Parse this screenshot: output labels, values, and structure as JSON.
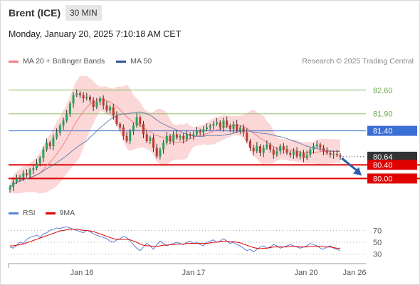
{
  "header": {
    "title": "Brent (ICE)",
    "timeframe": "30 MIN",
    "datetime": "Monday, January 20, 2025 7:10:18 AM CET"
  },
  "legend": {
    "ma20_label": "MA 20 + Bollinger Bands",
    "ma50_label": "MA 50",
    "credit": "Research © 2025 Trading Central"
  },
  "rsi_legend": {
    "rsi_label": "RSI",
    "ma_label": "9MA"
  },
  "colors": {
    "up": "#27a35a",
    "down": "#c0392b",
    "ma20": "#f08080",
    "ma50": "#4a6fa5",
    "band": "#fbd0d0",
    "green_level": "#8fbf6a",
    "blue_level": "#3b6fd4",
    "red_level": "#e00000",
    "current": "#333333",
    "arrow": "#2a5ea8",
    "rsi": "#5b7fd6",
    "rsi_ma": "#e00000"
  },
  "chart_data": [
    {
      "type": "candlestick",
      "instrument": "Brent (ICE)",
      "timeframe": "30 MIN",
      "x_ticks": [
        "Jan 16",
        "Jan 17",
        "Jan 20",
        "Jan 26"
      ],
      "ylim": [
        79.55,
        83.15
      ],
      "levels": [
        {
          "value": "82.60",
          "style": "green"
        },
        {
          "value": "81.90",
          "style": "green"
        },
        {
          "value": "81.40",
          "style": "blue"
        },
        {
          "value": "80.64",
          "style": "current"
        },
        {
          "value": "80.40",
          "style": "red"
        },
        {
          "value": "80.00",
          "style": "red"
        }
      ],
      "closes": [
        79.75,
        79.9,
        80.0,
        80.05,
        80.15,
        80.1,
        80.25,
        80.3,
        80.45,
        80.6,
        80.85,
        81.05,
        80.95,
        81.2,
        81.35,
        81.55,
        81.7,
        81.9,
        82.2,
        82.45,
        82.5,
        82.45,
        82.35,
        82.4,
        82.3,
        82.1,
        82.25,
        82.35,
        82.15,
        82.0,
        82.1,
        81.85,
        81.6,
        81.5,
        81.25,
        81.1,
        81.4,
        81.55,
        81.8,
        81.6,
        81.3,
        81.1,
        81.2,
        80.9,
        80.65,
        80.85,
        81.05,
        81.25,
        81.1,
        81.3,
        81.2,
        81.25,
        81.15,
        81.3,
        81.25,
        81.3,
        81.4,
        81.35,
        81.45,
        81.5,
        81.55,
        81.6,
        81.65,
        81.5,
        81.7,
        81.55,
        81.45,
        81.6,
        81.4,
        81.5,
        81.35,
        81.1,
        80.9,
        80.8,
        80.95,
        80.75,
        80.9,
        81.0,
        80.85,
        80.7,
        80.8,
        80.95,
        80.85,
        80.75,
        80.7,
        80.8,
        80.65,
        80.75,
        80.6,
        80.7,
        80.85,
        80.95,
        81.0,
        80.9,
        80.8,
        80.75,
        80.7,
        80.72,
        80.68,
        80.64
      ],
      "projection_target": 80.0,
      "rsi": {
        "ylim": [
          20,
          80
        ],
        "ticks": [
          70,
          50,
          30
        ],
        "values": [
          42,
          40,
          45,
          50,
          48,
          55,
          58,
          60,
          62,
          58,
          64,
          66,
          70,
          72,
          74,
          73,
          75,
          76,
          74,
          72,
          70,
          68,
          66,
          70,
          68,
          64,
          62,
          60,
          58,
          56,
          52,
          50,
          54,
          56,
          60,
          58,
          52,
          46,
          40,
          36,
          42,
          48,
          44,
          38,
          46,
          52,
          48,
          44,
          46,
          48,
          50,
          48,
          46,
          50,
          52,
          48,
          50,
          46,
          44,
          50,
          52,
          54,
          50,
          52,
          56,
          52,
          48,
          50,
          46,
          44,
          40,
          36,
          38,
          34,
          38,
          42,
          44,
          40,
          42,
          46,
          44,
          40,
          42,
          44,
          46,
          44,
          42,
          40,
          42,
          44,
          48,
          46,
          44,
          40,
          38,
          42,
          44,
          40,
          38,
          36
        ],
        "ma": [
          44,
          44,
          45,
          46,
          47,
          49,
          51,
          53,
          55,
          57,
          59,
          61,
          63,
          65,
          67,
          69,
          70,
          71,
          72,
          72,
          72,
          71,
          70,
          70,
          69,
          68,
          66,
          64,
          62,
          60,
          58,
          56,
          55,
          55,
          55,
          55,
          54,
          52,
          50,
          47,
          45,
          44,
          44,
          43,
          43,
          44,
          45,
          45,
          46,
          46,
          47,
          47,
          47,
          48,
          48,
          48,
          48,
          48,
          48,
          48,
          49,
          50,
          50,
          51,
          52,
          52,
          51,
          51,
          50,
          49,
          47,
          45,
          43,
          41,
          40,
          39,
          40,
          40,
          41,
          42,
          42,
          42,
          42,
          42,
          43,
          43,
          43,
          42,
          42,
          42,
          43,
          43,
          43,
          43,
          42,
          42,
          42,
          41,
          40,
          40
        ]
      }
    }
  ]
}
